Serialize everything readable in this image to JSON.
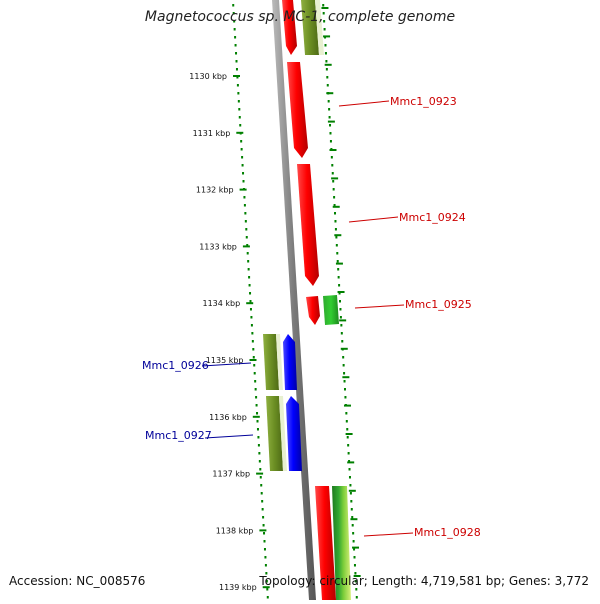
{
  "title": "Magnetococcus sp. MC-1, complete genome",
  "footer": {
    "accession": "Accession: NC_008576",
    "topology": "Topology: circular; Length: 4,719,581 bp; Genes: 3,772"
  },
  "colors": {
    "forward_gene": "#ff0000",
    "forward_label": "#cc0000",
    "reverse_gene": "#0000ff",
    "reverse_label": "#000099",
    "cds_band_olive": "#6b8e23",
    "cds_band_green": "#32cd32",
    "tick_marks": "#008000",
    "backbone": "#888888"
  },
  "scale": {
    "ticks": [
      "1130 kbp",
      "1131 kbp",
      "1132 kbp",
      "1133 kbp",
      "1134 kbp",
      "1135 kbp",
      "1136 kbp",
      "1137 kbp",
      "1138 kbp",
      "1139 kbp"
    ]
  },
  "genes": [
    {
      "label": "Mmc1_0923",
      "strand": "forward"
    },
    {
      "label": "Mmc1_0924",
      "strand": "forward"
    },
    {
      "label": "Mmc1_0925",
      "strand": "forward"
    },
    {
      "label": "Mmc1_0926",
      "strand": "reverse"
    },
    {
      "label": "Mmc1_0927",
      "strand": "reverse"
    },
    {
      "label": "Mmc1_0928",
      "strand": "forward"
    }
  ]
}
